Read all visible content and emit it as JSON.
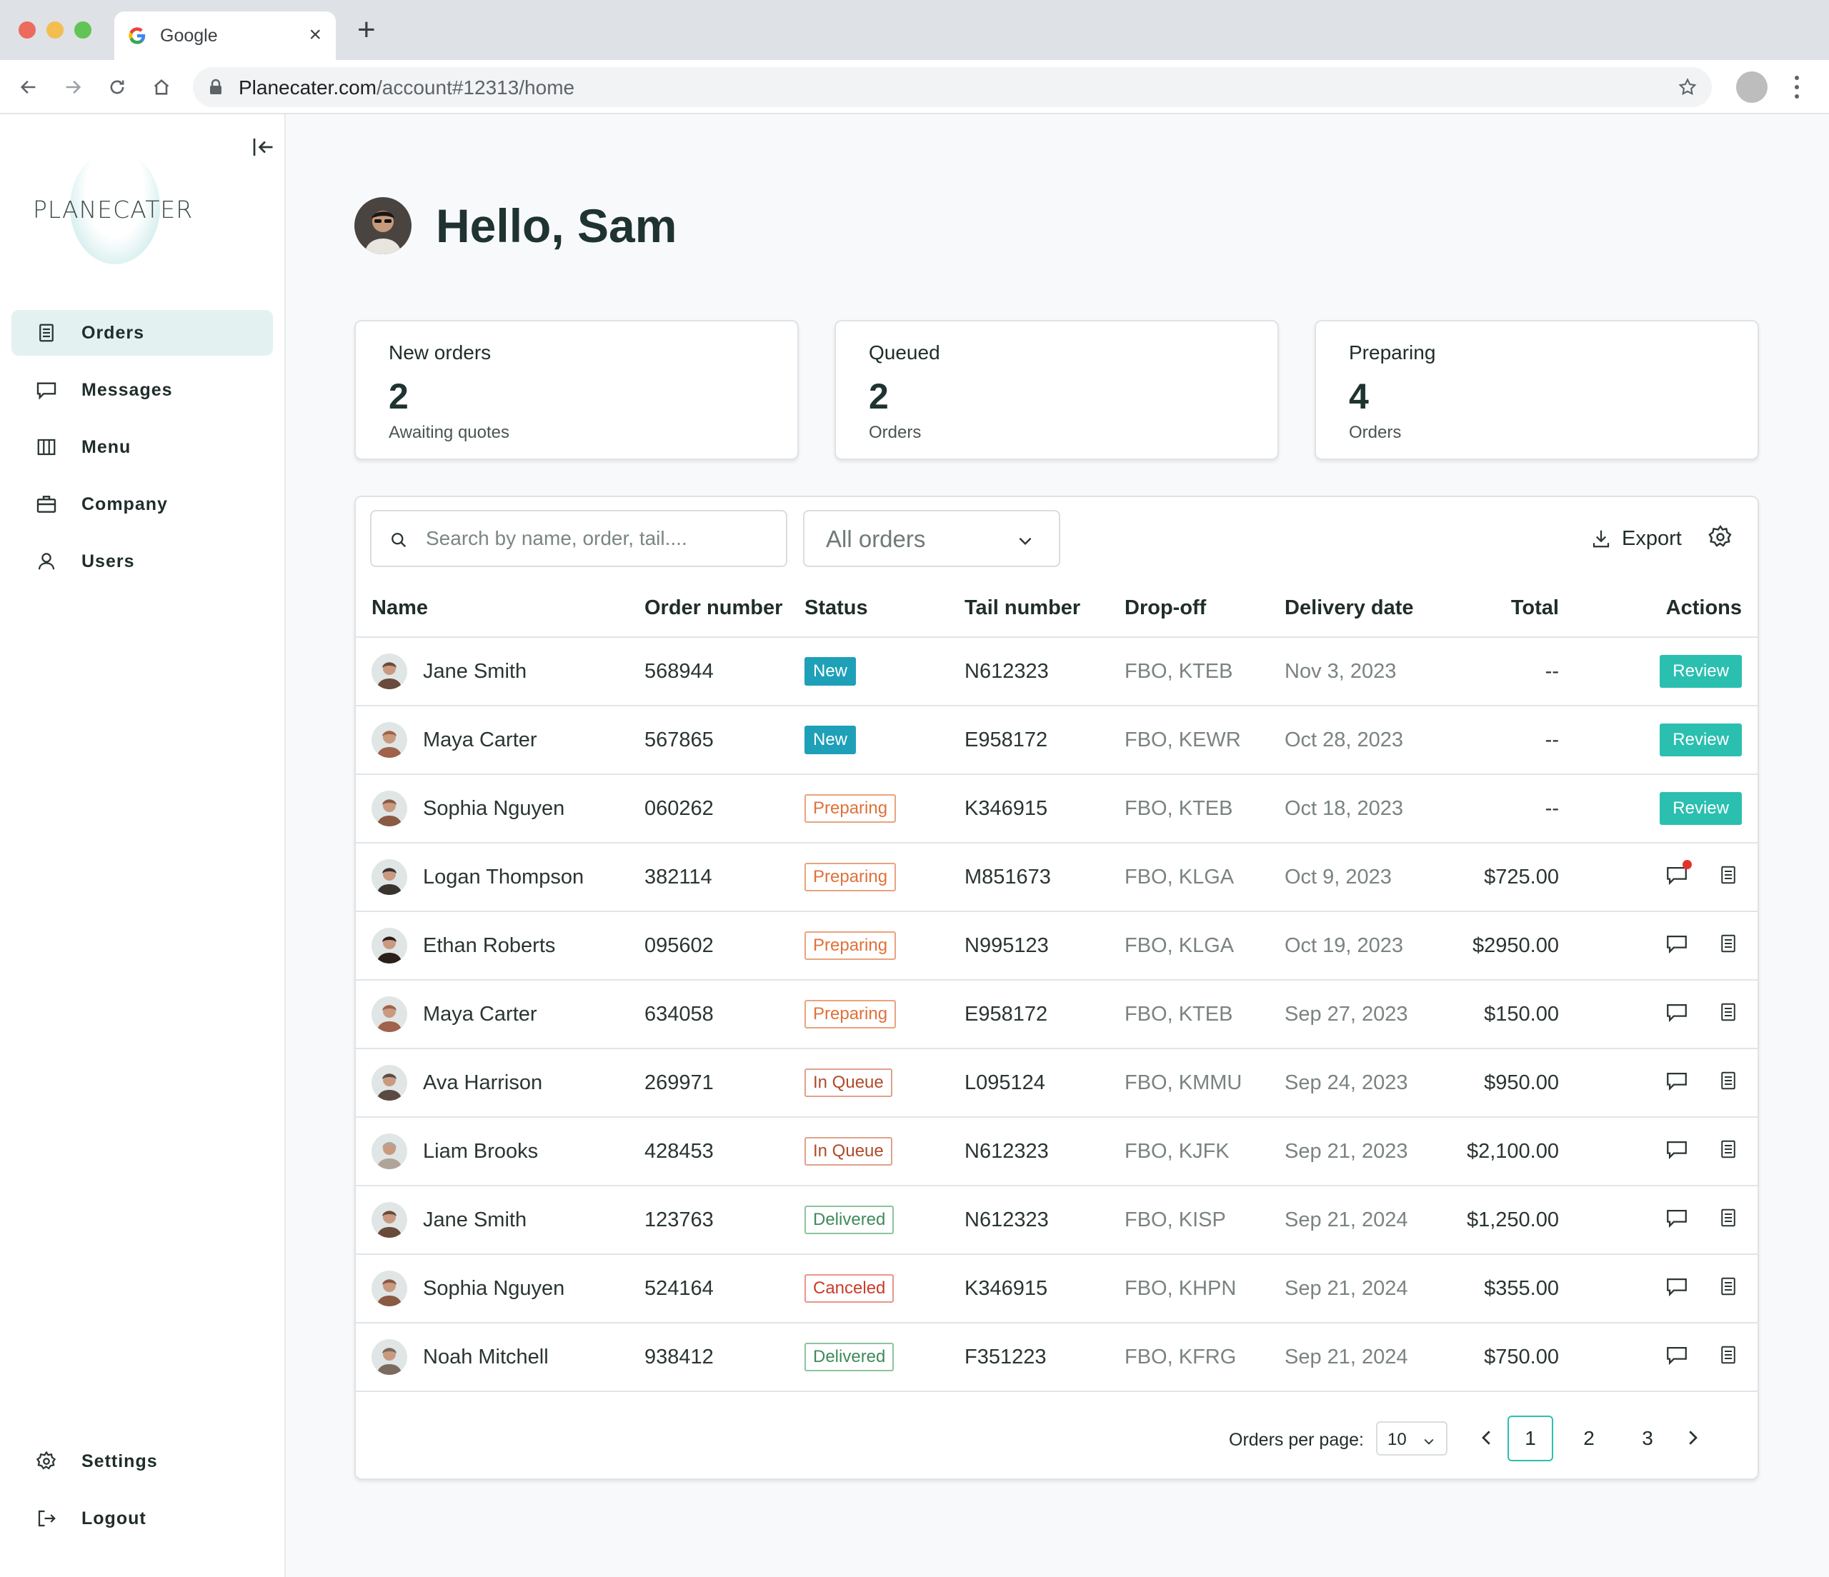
{
  "browser": {
    "tab_title": "Google",
    "tab_close": "×",
    "new_tab": "+",
    "url_host": "Planecater.com",
    "url_path": "/account#12313/home"
  },
  "sidebar": {
    "logo_text": "PLANECATER",
    "items": [
      {
        "label": "Orders",
        "icon": "orders-icon",
        "active": true
      },
      {
        "label": "Messages",
        "icon": "messages-icon"
      },
      {
        "label": "Menu",
        "icon": "menu-columns-icon"
      },
      {
        "label": "Company",
        "icon": "briefcase-icon"
      },
      {
        "label": "Users",
        "icon": "user-icon"
      }
    ],
    "bottom_items": [
      {
        "label": "Settings",
        "icon": "gear-icon"
      },
      {
        "label": "Logout",
        "icon": "logout-icon"
      }
    ]
  },
  "header": {
    "greeting": "Hello, Sam"
  },
  "stats": [
    {
      "label": "New orders",
      "value": "2",
      "sub": "Awaiting quotes"
    },
    {
      "label": "Queued",
      "value": "2",
      "sub": "Orders"
    },
    {
      "label": "Preparing",
      "value": "4",
      "sub": "Orders"
    }
  ],
  "toolbar": {
    "search_placeholder": "Search by name, order, tail....",
    "filter_value": "All orders",
    "export_label": "Export"
  },
  "table": {
    "columns": {
      "name": "Name",
      "order": "Order number",
      "status": "Status",
      "tail": "Tail number",
      "dropoff": "Drop-off",
      "date": "Delivery date",
      "total": "Total",
      "actions": "Actions"
    },
    "review_label": "Review",
    "rows": [
      {
        "name": "Jane Smith",
        "order": "568944",
        "status": "New",
        "status_type": "new",
        "tail": "N612323",
        "dropoff": "FBO, KTEB",
        "date": "Nov 3, 2023",
        "total": "--",
        "action": "review",
        "avatar_color": "#6a4a3a"
      },
      {
        "name": "Maya Carter",
        "order": "567865",
        "status": "New",
        "status_type": "new",
        "tail": "E958172",
        "dropoff": "FBO, KEWR",
        "date": "Oct 28, 2023",
        "total": "--",
        "action": "review",
        "avatar_color": "#a0624a"
      },
      {
        "name": "Sophia Nguyen",
        "order": "060262",
        "status": "Preparing",
        "status_type": "preparing",
        "tail": "K346915",
        "dropoff": "FBO, KTEB",
        "date": "Oct 18, 2023",
        "total": "--",
        "action": "review",
        "avatar_color": "#8a5a44"
      },
      {
        "name": "Logan Thompson",
        "order": "382114",
        "status": "Preparing",
        "status_type": "preparing",
        "tail": "M851673",
        "dropoff": "FBO, KLGA",
        "date": "Oct 9, 2023",
        "total": "$725.00",
        "action": "icons",
        "unread": true,
        "avatar_color": "#3a3430"
      },
      {
        "name": "Ethan Roberts",
        "order": "095602",
        "status": "Preparing",
        "status_type": "preparing",
        "tail": "N995123",
        "dropoff": "FBO, KLGA",
        "date": "Oct 19, 2023",
        "total": "$2950.00",
        "action": "icons",
        "avatar_color": "#2b1f1a"
      },
      {
        "name": "Maya Carter",
        "order": "634058",
        "status": "Preparing",
        "status_type": "preparing",
        "tail": "E958172",
        "dropoff": "FBO, KTEB",
        "date": "Sep 27, 2023",
        "total": "$150.00",
        "action": "icons",
        "avatar_color": "#a0624a"
      },
      {
        "name": "Ava Harrison",
        "order": "269971",
        "status": "In Queue",
        "status_type": "queue",
        "tail": "L095124",
        "dropoff": "FBO, KMMU",
        "date": "Sep 24, 2023",
        "total": "$950.00",
        "action": "icons",
        "avatar_color": "#5a4a44"
      },
      {
        "name": "Liam Brooks",
        "order": "428453",
        "status": "In Queue",
        "status_type": "queue",
        "tail": "N612323",
        "dropoff": "FBO, KJFK",
        "date": "Sep 21, 2023",
        "total": "$2,100.00",
        "action": "icons",
        "avatar_color": "#b0a49a"
      },
      {
        "name": "Jane Smith",
        "order": "123763",
        "status": "Delivered",
        "status_type": "delivered",
        "tail": "N612323",
        "dropoff": "FBO, KISP",
        "date": "Sep 21, 2024",
        "total": "$1,250.00",
        "action": "icons",
        "avatar_color": "#6a4a3a"
      },
      {
        "name": "Sophia Nguyen",
        "order": "524164",
        "status": "Canceled",
        "status_type": "canceled",
        "tail": "K346915",
        "dropoff": "FBO, KHPN",
        "date": "Sep 21, 2024",
        "total": "$355.00",
        "action": "icons",
        "avatar_color": "#8a5a44"
      },
      {
        "name": "Noah Mitchell",
        "order": "938412",
        "status": "Delivered",
        "status_type": "delivered",
        "tail": "F351223",
        "dropoff": "FBO, KFRG",
        "date": "Sep 21, 2024",
        "total": "$750.00",
        "action": "icons",
        "avatar_color": "#7a6a60"
      }
    ]
  },
  "pagination": {
    "per_page_label": "Orders per page:",
    "per_page_value": "10",
    "pages": [
      "1",
      "2",
      "3"
    ],
    "current_page": "1"
  }
}
